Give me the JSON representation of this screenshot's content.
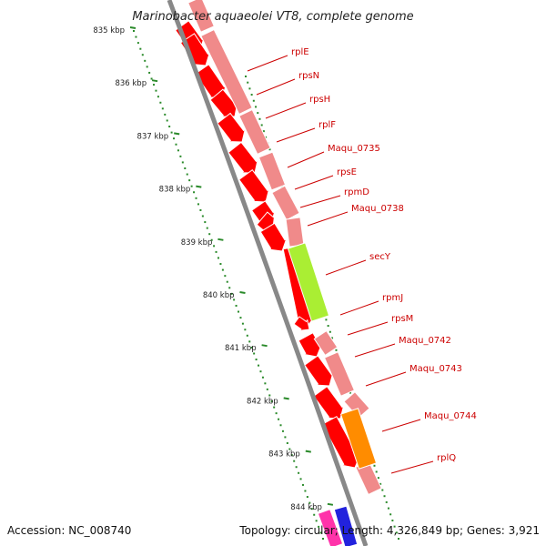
{
  "title": "Marinobacter aquaeolei VT8, complete genome",
  "footer": {
    "accession": "Accession: NC_008740",
    "info": "Topology: circular; Length: 4,326,849 bp; Genes: 3,921"
  },
  "kbp_labels": [
    "835 kbp",
    "836 kbp",
    "837 kbp",
    "838 kbp",
    "839 kbp",
    "840 kbp",
    "841 kbp",
    "842 kbp",
    "843 kbp",
    "844 kbp"
  ],
  "gene_labels": [
    "rplE",
    "rpsN",
    "rpsH",
    "rplF",
    "Maqu_0735",
    "rpsE",
    "rpmD",
    "Maqu_0738",
    "secY",
    "rpmJ",
    "rpsM",
    "Maqu_0742",
    "Maqu_0743",
    "Maqu_0744",
    "rplQ"
  ],
  "colors": {
    "gene_red": "#ff0000",
    "gene_pink": "#f08a8a",
    "secY": "#aaee33",
    "maqu_0744": "#ff8c00",
    "backbone": "#888888",
    "tick_green": "#2a8a2a",
    "label_red": "#cc0000"
  }
}
